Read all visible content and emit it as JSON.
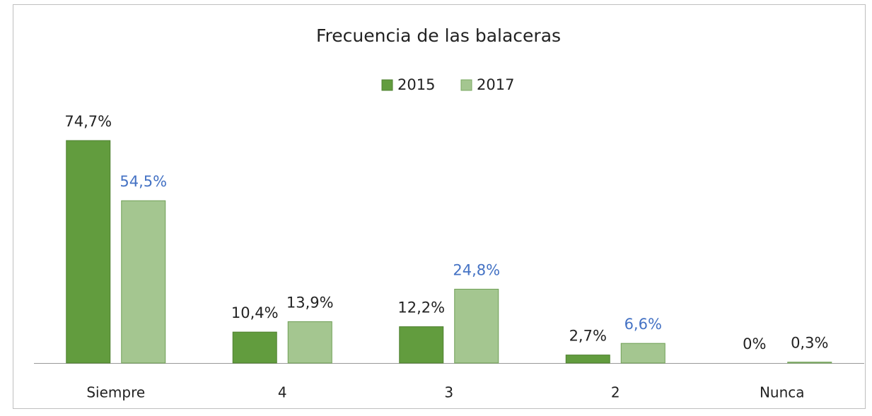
{
  "chart_data": {
    "type": "bar",
    "title": "Frecuencia de las balaceras",
    "categories": [
      "Siempre",
      "4",
      "3",
      "2",
      "Nunca"
    ],
    "series": [
      {
        "name": "2015",
        "color": "#629c3e",
        "values": [
          74.7,
          10.4,
          12.2,
          2.7,
          0
        ],
        "value_labels": [
          "74,7%",
          "10,4%",
          "12,2%",
          "2,7%",
          "0%"
        ],
        "label_colors": [
          "#222222",
          "#222222",
          "#222222",
          "#222222",
          "#222222"
        ]
      },
      {
        "name": "2017",
        "color": "#a4c690",
        "values": [
          54.5,
          13.9,
          24.8,
          6.6,
          0.3
        ],
        "value_labels": [
          "54,5%",
          "13,9%",
          "24,8%",
          "6,6%",
          "0,3%"
        ],
        "label_colors": [
          "#4472c4",
          "#222222",
          "#4472c4",
          "#4472c4",
          "#222222"
        ]
      }
    ],
    "legend": "top"
  }
}
